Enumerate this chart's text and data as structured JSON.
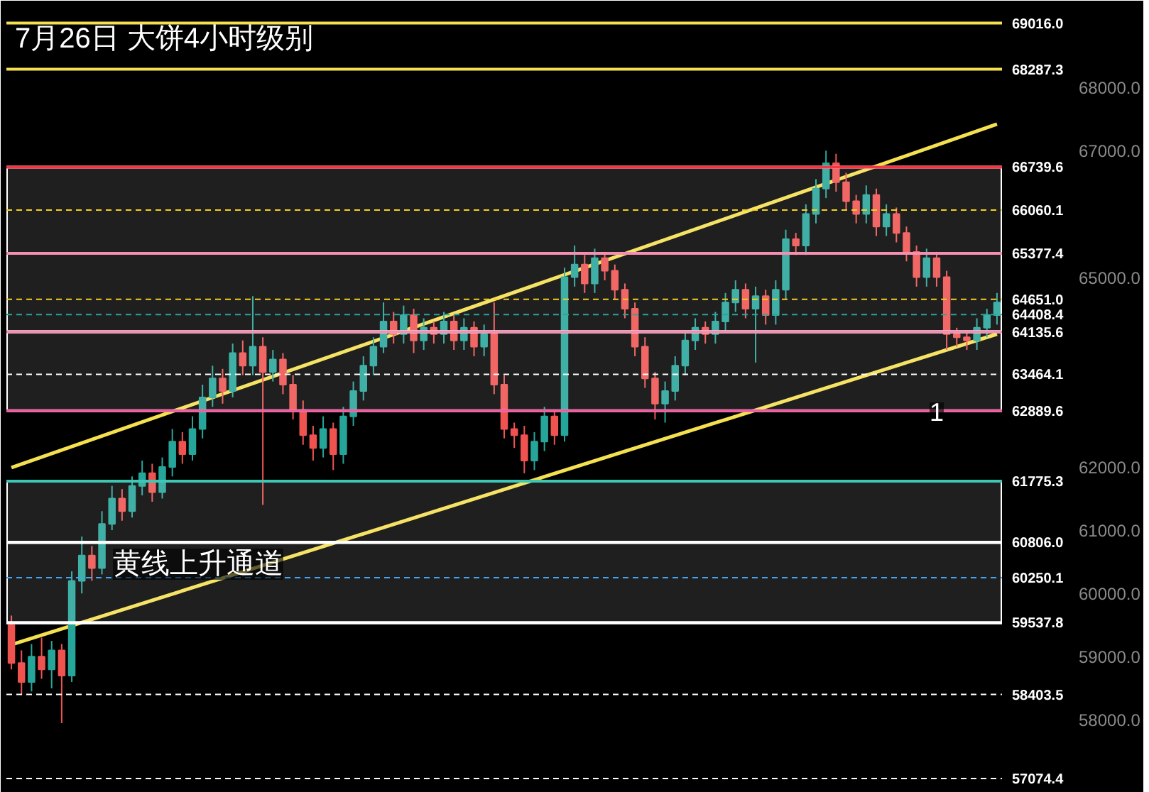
{
  "chart_data": {
    "type": "candlestick",
    "title": "7月26日 大饼4小时级别",
    "categories": [
      null,
      null,
      null,
      null,
      null,
      null,
      null,
      null,
      null,
      null,
      null,
      null,
      null,
      null,
      null,
      null,
      null,
      null,
      null,
      null,
      null,
      null,
      null,
      null,
      null,
      null,
      null,
      null,
      null,
      null,
      null,
      null,
      null,
      null,
      null,
      null,
      null,
      null,
      null,
      null,
      null,
      null,
      null,
      null,
      null,
      null,
      null,
      null,
      null,
      null,
      null,
      null,
      null,
      null,
      null,
      null,
      null,
      null,
      null,
      null,
      null,
      null,
      null,
      null,
      null,
      null,
      null,
      null,
      null,
      null,
      null,
      null,
      null,
      null,
      null,
      null,
      null,
      null,
      null,
      null,
      null,
      null,
      null,
      null,
      null,
      null,
      null,
      null,
      null,
      null,
      null,
      null,
      null,
      null,
      null,
      null,
      null,
      null,
      null
    ],
    "ohlc": [
      [
        59500,
        59650,
        58800,
        58900
      ],
      [
        58900,
        59100,
        58400,
        58600
      ],
      [
        58600,
        59200,
        58450,
        59000
      ],
      [
        59000,
        59300,
        58650,
        58800
      ],
      [
        58800,
        59250,
        58500,
        59100
      ],
      [
        59100,
        59200,
        57950,
        58700
      ],
      [
        58700,
        60350,
        58600,
        60200
      ],
      [
        60200,
        60900,
        60000,
        60600
      ],
      [
        60600,
        60750,
        60200,
        60400
      ],
      [
        60400,
        61300,
        60300,
        61100
      ],
      [
        61100,
        61700,
        61000,
        61500
      ],
      [
        61500,
        61650,
        61150,
        61300
      ],
      [
        61300,
        61850,
        61200,
        61700
      ],
      [
        61700,
        62100,
        61550,
        61900
      ],
      [
        61900,
        62050,
        61450,
        61600
      ],
      [
        61600,
        62150,
        61500,
        62000
      ],
      [
        62000,
        62600,
        61850,
        62400
      ],
      [
        62400,
        62550,
        62050,
        62200
      ],
      [
        62200,
        62800,
        62100,
        62600
      ],
      [
        62600,
        63300,
        62450,
        63100
      ],
      [
        63100,
        63600,
        62950,
        63400
      ],
      [
        63400,
        63550,
        63000,
        63200
      ],
      [
        63200,
        63950,
        63100,
        63800
      ],
      [
        63800,
        64000,
        63450,
        63600
      ],
      [
        63600,
        64700,
        63450,
        63900
      ],
      [
        63900,
        64050,
        61400,
        63500
      ],
      [
        63500,
        63850,
        63350,
        63700
      ],
      [
        63700,
        63800,
        63150,
        63300
      ],
      [
        63300,
        63450,
        62750,
        62900
      ],
      [
        62900,
        63050,
        62350,
        62500
      ],
      [
        62500,
        62650,
        62100,
        62300
      ],
      [
        62300,
        62800,
        62150,
        62600
      ],
      [
        62600,
        62700,
        61950,
        62200
      ],
      [
        62200,
        62950,
        62050,
        62800
      ],
      [
        62800,
        63350,
        62650,
        63200
      ],
      [
        63200,
        63750,
        63050,
        63600
      ],
      [
        63600,
        64050,
        63450,
        63900
      ],
      [
        63900,
        64600,
        63800,
        64300
      ],
      [
        64300,
        64450,
        63950,
        64100
      ],
      [
        64100,
        64550,
        63950,
        64400
      ],
      [
        64400,
        64500,
        63800,
        64000
      ],
      [
        64000,
        64350,
        63850,
        64200
      ],
      [
        64200,
        64300,
        63950,
        64100
      ],
      [
        64100,
        64450,
        63950,
        64300
      ],
      [
        64300,
        64400,
        63850,
        64000
      ],
      [
        64000,
        64350,
        63850,
        64200
      ],
      [
        64200,
        64300,
        63750,
        63900
      ],
      [
        63900,
        64250,
        63750,
        64100
      ],
      [
        64100,
        64600,
        63150,
        63300
      ],
      [
        63300,
        63450,
        62450,
        62600
      ],
      [
        62600,
        62700,
        62300,
        62500
      ],
      [
        62500,
        62650,
        61900,
        62100
      ],
      [
        62100,
        62550,
        61950,
        62400
      ],
      [
        62400,
        62950,
        62250,
        62800
      ],
      [
        62800,
        62900,
        62350,
        62500
      ],
      [
        62500,
        65150,
        62400,
        65000
      ],
      [
        65000,
        65500,
        64850,
        65200
      ],
      [
        65200,
        65350,
        64750,
        64900
      ],
      [
        64900,
        65450,
        64750,
        65300
      ],
      [
        65300,
        65400,
        64950,
        65100
      ],
      [
        65100,
        65200,
        64650,
        64800
      ],
      [
        64800,
        64900,
        64350,
        64500
      ],
      [
        64500,
        64600,
        63750,
        63900
      ],
      [
        63900,
        64050,
        63250,
        63400
      ],
      [
        63400,
        63500,
        62750,
        63000
      ],
      [
        63000,
        63350,
        62700,
        63200
      ],
      [
        63200,
        63750,
        63050,
        63600
      ],
      [
        63600,
        64150,
        63450,
        64000
      ],
      [
        64000,
        64350,
        63850,
        64200
      ],
      [
        64200,
        64300,
        63950,
        64100
      ],
      [
        64100,
        64450,
        63950,
        64300
      ],
      [
        64300,
        64750,
        64150,
        64600
      ],
      [
        64600,
        64950,
        64450,
        64800
      ],
      [
        64800,
        64900,
        64350,
        64500
      ],
      [
        64500,
        64850,
        63650,
        64700
      ],
      [
        64700,
        64800,
        64250,
        64400
      ],
      [
        64400,
        64950,
        64250,
        64800
      ],
      [
        64800,
        65750,
        64650,
        65600
      ],
      [
        65600,
        65700,
        65350,
        65500
      ],
      [
        65500,
        66150,
        65350,
        66000
      ],
      [
        66000,
        66550,
        65850,
        66400
      ],
      [
        66400,
        67000,
        66250,
        66800
      ],
      [
        66800,
        66950,
        66350,
        66500
      ],
      [
        66500,
        66650,
        66050,
        66200
      ],
      [
        66200,
        66300,
        65850,
        66000
      ],
      [
        66000,
        66450,
        65850,
        66300
      ],
      [
        66300,
        66400,
        65650,
        65800
      ],
      [
        65800,
        66150,
        65650,
        66000
      ],
      [
        66000,
        66100,
        65550,
        65700
      ],
      [
        65700,
        65800,
        65250,
        65400
      ],
      [
        65400,
        65500,
        64850,
        65000
      ],
      [
        65000,
        65450,
        64850,
        65300
      ],
      [
        65300,
        65400,
        64850,
        65000
      ],
      [
        65000,
        65100,
        63850,
        64100
      ],
      [
        64100,
        64200,
        63900,
        64050
      ],
      [
        64050,
        64150,
        63850,
        64000
      ],
      [
        64000,
        64350,
        63850,
        64200
      ],
      [
        64200,
        64500,
        64050,
        64400
      ],
      [
        64400,
        64750,
        64250,
        64600
      ]
    ],
    "colors": [
      "#ef5350",
      "#ef5350",
      "#26a69a",
      "#ef5350",
      "#26a69a",
      "#ef5350",
      "#26a69a",
      "#26a69a",
      "#ef5350",
      "#26a69a",
      "#26a69a",
      "#ef5350",
      "#26a69a",
      "#26a69a",
      "#ef5350",
      "#26a69a",
      "#26a69a",
      "#ef5350",
      "#26a69a",
      "#26a69a",
      "#26a69a",
      "#ef5350",
      "#26a69a",
      "#ef5350",
      "#26a69a",
      "#ef5350",
      "#26a69a",
      "#ef5350",
      "#ef5350",
      "#ef5350",
      "#ef5350",
      "#26a69a",
      "#ef5350",
      "#26a69a",
      "#26a69a",
      "#26a69a",
      "#26a69a",
      "#26a69a",
      "#ef5350",
      "#26a69a",
      "#ef5350",
      "#26a69a",
      "#ef5350",
      "#26a69a",
      "#ef5350",
      "#26a69a",
      "#ef5350",
      "#26a69a",
      "#ef5350",
      "#ef5350",
      "#ef5350",
      "#ef5350",
      "#26a69a",
      "#26a69a",
      "#ef5350",
      "#26a69a",
      "#26a69a",
      "#ef5350",
      "#26a69a",
      "#ef5350",
      "#ef5350",
      "#ef5350",
      "#ef5350",
      "#ef5350",
      "#ef5350",
      "#26a69a",
      "#26a69a",
      "#26a69a",
      "#26a69a",
      "#ef5350",
      "#26a69a",
      "#26a69a",
      "#26a69a",
      "#ef5350",
      "#26a69a",
      "#ef5350",
      "#26a69a",
      "#26a69a",
      "#ef5350",
      "#26a69a",
      "#26a69a",
      "#26a69a",
      "#ef5350",
      "#ef5350",
      "#ef5350",
      "#26a69a",
      "#ef5350",
      "#26a69a",
      "#ef5350",
      "#ef5350",
      "#ef5350",
      "#26a69a",
      "#ef5350",
      "#ef5350",
      "#ef5350",
      "#ef5350",
      "#26a69a",
      "#26a69a",
      "#26a69a"
    ],
    "series": [
      {
        "type": "line",
        "color": "#f5e050",
        "values": [
          61990,
          null,
          null,
          null,
          null,
          null,
          null,
          null,
          null,
          null,
          null,
          null,
          null,
          null,
          null,
          null,
          null,
          null,
          null,
          null,
          null,
          null,
          null,
          null,
          null,
          null,
          null,
          null,
          null,
          null,
          null,
          null,
          null,
          null,
          null,
          null,
          null,
          null,
          null,
          null,
          null,
          null,
          null,
          null,
          null,
          null,
          null,
          null,
          null,
          null,
          null,
          null,
          null,
          null,
          null,
          null,
          null,
          null,
          null,
          null,
          null,
          null,
          null,
          null,
          null,
          null,
          null,
          null,
          null,
          null,
          null,
          null,
          null,
          null,
          null,
          null,
          null,
          null,
          null,
          null,
          null,
          null,
          null,
          null,
          null,
          null,
          null,
          null,
          null,
          null,
          null,
          null,
          null,
          null,
          null,
          null,
          null,
          null,
          67420
        ]
      },
      {
        "type": "line",
        "color": "#f5e050",
        "values": [
          59190,
          null,
          null,
          null,
          null,
          null,
          null,
          null,
          null,
          null,
          null,
          null,
          null,
          null,
          null,
          null,
          null,
          null,
          null,
          null,
          null,
          null,
          null,
          null,
          null,
          null,
          null,
          null,
          null,
          null,
          null,
          null,
          null,
          null,
          null,
          null,
          null,
          null,
          null,
          null,
          null,
          null,
          null,
          null,
          null,
          null,
          null,
          null,
          null,
          null,
          null,
          null,
          null,
          null,
          null,
          null,
          null,
          null,
          null,
          null,
          null,
          null,
          null,
          null,
          null,
          null,
          null,
          null,
          null,
          null,
          null,
          null,
          null,
          null,
          null,
          null,
          null,
          null,
          null,
          null,
          null,
          null,
          null,
          null,
          null,
          null,
          null,
          null,
          null,
          null,
          null,
          null,
          null,
          null,
          null,
          null,
          null,
          null,
          64100
        ]
      }
    ],
    "ylim": [
      56850,
      69370
    ],
    "yticks": [
      {
        "value": 58000,
        "label": "58000.0"
      },
      {
        "value": 59000,
        "label": "59000.0"
      },
      {
        "value": 60000,
        "label": "60000.0"
      },
      {
        "value": 61000,
        "label": "61000.0"
      },
      {
        "value": 62000,
        "label": "62000.0"
      },
      {
        "value": 65000,
        "label": "65000.0"
      },
      {
        "value": 67000,
        "label": "67000.0"
      },
      {
        "value": 68000,
        "label": "68000.0"
      }
    ],
    "tick_labels": "y",
    "grid": false,
    "ref_lines": [
      {
        "axis": "y",
        "value": 69016.0,
        "label": "69016.0",
        "color": "#f5e050",
        "line_style": "solid"
      },
      {
        "axis": "y",
        "value": 68287.3,
        "label": "68287.3",
        "color": "#f5e050",
        "line_style": "solid"
      },
      {
        "axis": "y",
        "value": 66739.6,
        "label": "66739.6",
        "color": "#f23645",
        "line_style": "solid"
      },
      {
        "axis": "y",
        "value": 66060.1,
        "label": "66060.1",
        "color": "#f5d020",
        "line_style": "dashed"
      },
      {
        "axis": "y",
        "value": 65377.4,
        "label": "65377.4",
        "color": "#f48fb1",
        "line_style": "solid"
      },
      {
        "axis": "y",
        "value": 64651.0,
        "label": "64651.0",
        "color": "#f5d020",
        "line_style": "dashed"
      },
      {
        "axis": "y",
        "value": 64408.4,
        "label": "64408.4",
        "color": "#26a69a",
        "line_style": "dashed"
      },
      {
        "axis": "y",
        "value": 64135.6,
        "label": "64135.6",
        "color": "#f48fb1",
        "line_style": "solid"
      },
      {
        "axis": "y",
        "value": 63464.1,
        "label": "63464.1",
        "color": "#ffffff",
        "line_style": "dashed"
      },
      {
        "axis": "y",
        "value": 62889.6,
        "label": "62889.6",
        "color": "#ec5c9e",
        "line_style": "solid"
      },
      {
        "axis": "y",
        "value": 61775.3,
        "label": "61775.3",
        "color": "#3cc8b4",
        "line_style": "solid"
      },
      {
        "axis": "y",
        "value": 60806.0,
        "label": "60806.0",
        "color": "#ffffff",
        "line_style": "solid"
      },
      {
        "axis": "y",
        "value": 60250.1,
        "label": "60250.1",
        "color": "#42a5f5",
        "line_style": "dashed"
      },
      {
        "axis": "y",
        "value": 59537.8,
        "label": "59537.8",
        "color": "#ffffff",
        "line_style": "solid"
      },
      {
        "axis": "y",
        "value": 58403.5,
        "label": "58403.5",
        "color": "#ffffff",
        "line_style": "dashed"
      },
      {
        "axis": "y",
        "value": 57074.4,
        "label": "57074.4",
        "color": "#ffffff",
        "line_style": "dashed"
      }
    ],
    "bands": [
      {
        "axis": "y",
        "from": 65377.4,
        "to": 66739.6,
        "color": "#ffffff"
      },
      {
        "axis": "y",
        "from": 64135.6,
        "to": 65377.4,
        "color": "#ffffff"
      },
      {
        "axis": "y",
        "from": 62889.6,
        "to": 64135.6,
        "color": "#ffffff"
      },
      {
        "axis": "y",
        "from": 60806.0,
        "to": 61775.3,
        "color": "#ffffff"
      },
      {
        "axis": "y",
        "from": 59537.8,
        "to": 60806.0,
        "color": "#ffffff"
      }
    ],
    "annotations": [
      "黄线上升通道",
      "1"
    ]
  }
}
